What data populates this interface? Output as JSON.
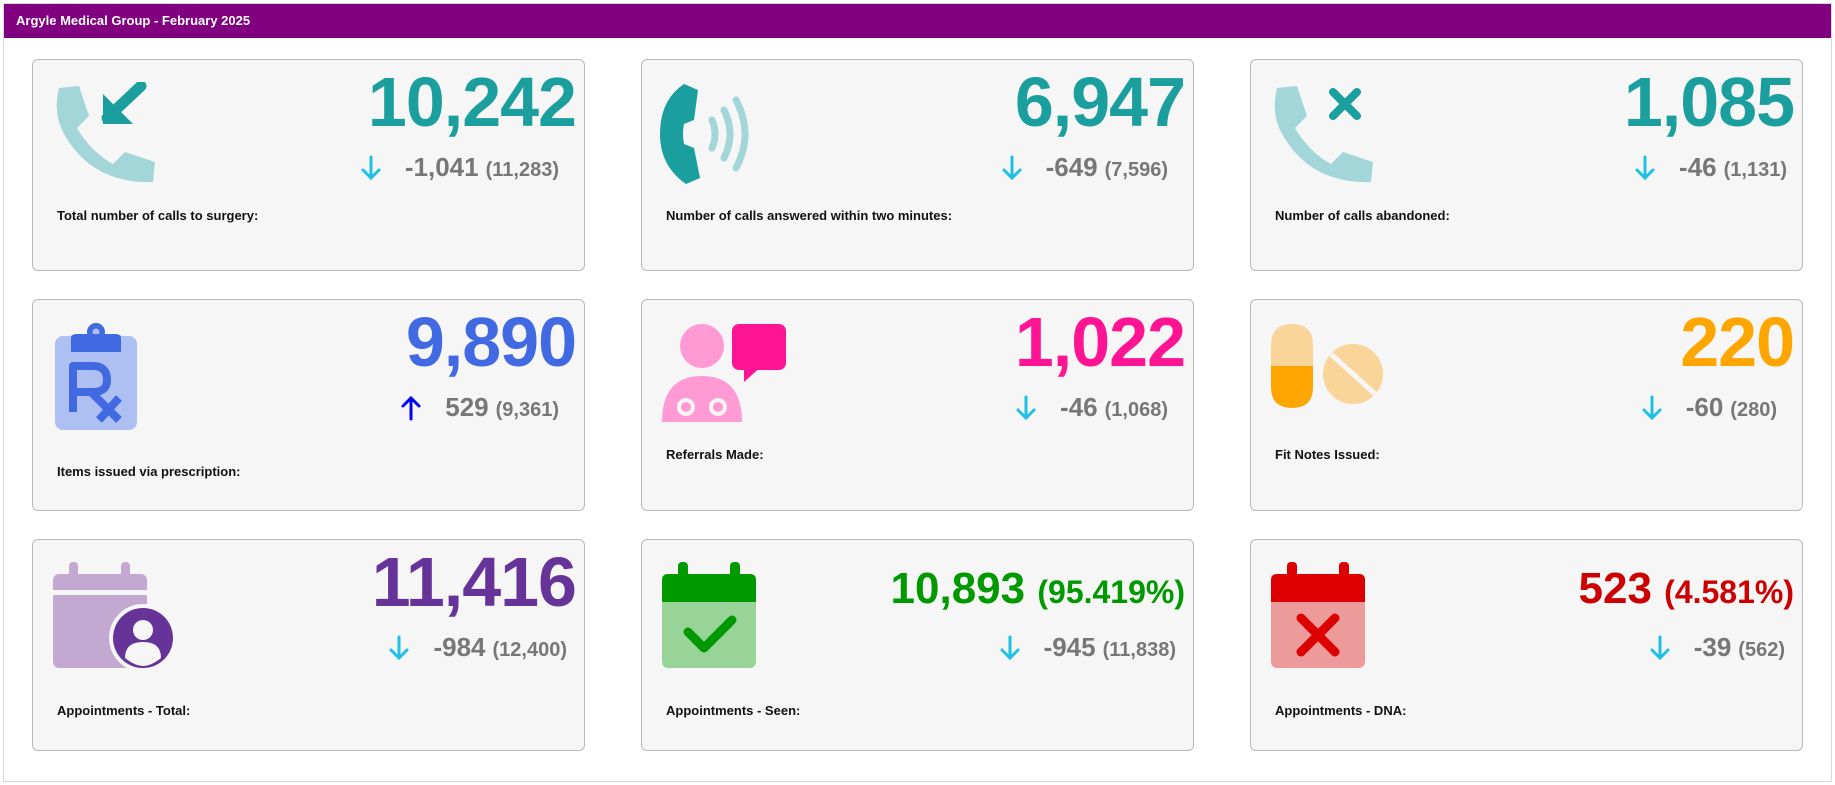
{
  "header": {
    "title": "Argyle Medical Group - February 2025"
  },
  "colors": {
    "header": "#800080",
    "teal": "#1a9e9e",
    "blue": "#4169e1",
    "pink": "#ff1493",
    "orange": "#ffa500",
    "purple": "#663399",
    "green": "#009900",
    "red": "#cc0000",
    "down_arrow": "#1fbfe6",
    "up_arrow": "#0000ee"
  },
  "cards": [
    {
      "label": "Total number of calls to surgery:",
      "value": "10,242",
      "change": "-1,041",
      "previous": "(11,283)",
      "trend": "down",
      "icon": "incoming-call-icon"
    },
    {
      "label": "Number of calls answered within two minutes:",
      "value": "6,947",
      "change": "-649",
      "previous": "(7,596)",
      "trend": "down",
      "icon": "ringing-phone-icon"
    },
    {
      "label": "Number of calls abandoned:",
      "value": "1,085",
      "change": "-46",
      "previous": "(1,131)",
      "trend": "down",
      "icon": "missed-call-icon"
    },
    {
      "label": "Items issued via prescription:",
      "value": "9,890",
      "change": "529",
      "previous": "(9,361)",
      "trend": "up",
      "icon": "prescription-clipboard-icon"
    },
    {
      "label": "Referrals Made:",
      "value": "1,022",
      "change": "-46",
      "previous": "(1,068)",
      "trend": "down",
      "icon": "doctor-chat-icon"
    },
    {
      "label": "Fit Notes Issued:",
      "value": "220",
      "change": "-60",
      "previous": "(280)",
      "trend": "down",
      "icon": "pills-icon"
    },
    {
      "label": "Appointments - Total:",
      "value": "11,416",
      "change": "-984",
      "previous": "(12,400)",
      "trend": "down",
      "icon": "calendar-user-icon"
    },
    {
      "label": "Appointments - Seen:",
      "value": "10,893",
      "value_pct": "(95.419%)",
      "change": "-945",
      "previous": "(11,838)",
      "trend": "down",
      "icon": "calendar-check-icon"
    },
    {
      "label": "Appointments - DNA:",
      "value": "523",
      "value_pct": "(4.581%)",
      "change": "-39",
      "previous": "(562)",
      "trend": "down",
      "icon": "calendar-cross-icon"
    }
  ]
}
